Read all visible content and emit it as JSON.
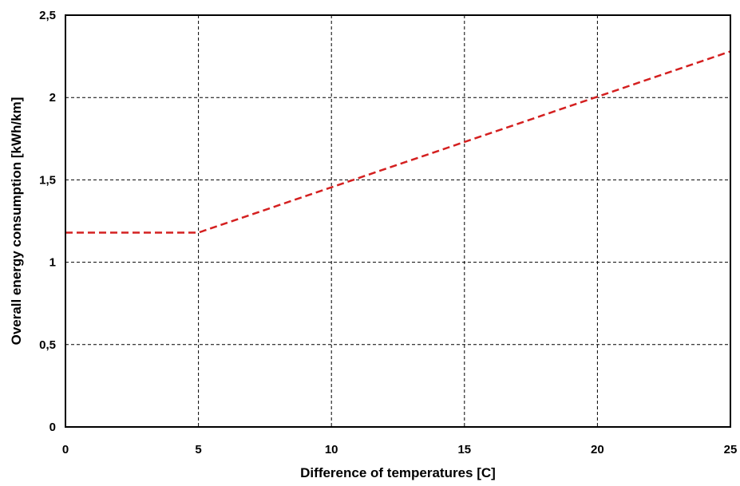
{
  "chart_data": {
    "type": "line",
    "title": "",
    "xlabel": "Difference of temperatures [C]",
    "ylabel": "Overall energy consumption  [kWh/km]",
    "xlim": [
      0,
      25
    ],
    "ylim": [
      0,
      2.5
    ],
    "x_ticks": [
      0,
      5,
      10,
      15,
      20,
      25
    ],
    "y_ticks": [
      0,
      0.5,
      1,
      1.5,
      2,
      2.5
    ],
    "x_tick_labels": [
      "0",
      "5",
      "10",
      "15",
      "20",
      "25"
    ],
    "y_tick_labels": [
      "0",
      "0,5",
      "1",
      "1,5",
      "2",
      "2,5"
    ],
    "grid": true,
    "grid_style": "dashed",
    "legend": "none",
    "series": [
      {
        "color": "#d42020",
        "line_style": "dashed",
        "x": [
          0,
          5,
          25
        ],
        "y": [
          1.18,
          1.18,
          2.28
        ]
      }
    ]
  }
}
